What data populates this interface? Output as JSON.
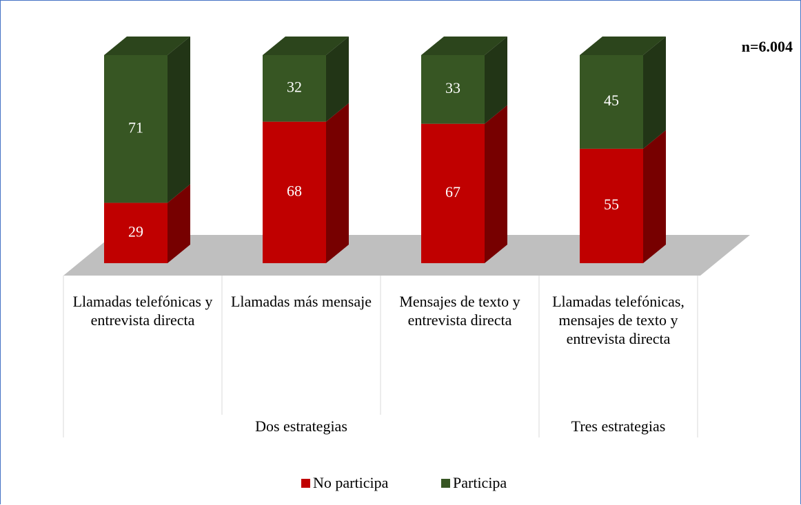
{
  "chart_data": {
    "type": "bar3d_stacked",
    "annotation": "n=6.004",
    "categories": [
      "Llamadas telefónicas y entrevista directa",
      "Llamadas más mensaje",
      "Mensajes de texto y entrevista directa",
      "Llamadas telefónicas, mensajes de texto y entrevista directa"
    ],
    "groups": [
      {
        "label": "Dos estrategias",
        "span": 3
      },
      {
        "label": "Tres estrategias",
        "span": 1
      }
    ],
    "series": [
      {
        "name": "No participa",
        "color": "#c00000",
        "values": [
          29,
          68,
          67,
          55
        ]
      },
      {
        "name": "Participa",
        "color": "#375623",
        "values": [
          71,
          32,
          33,
          45
        ]
      }
    ]
  }
}
